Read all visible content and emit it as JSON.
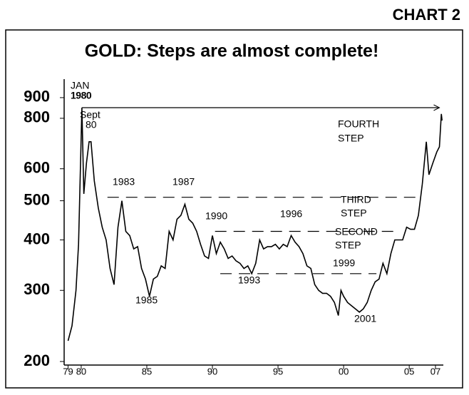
{
  "chart_label": "CHART 2",
  "chart_data": {
    "type": "line",
    "title": "GOLD:  Steps are almost complete!",
    "log_y": true,
    "color": "#000000",
    "xlim": [
      1978.7,
      2007.6
    ],
    "ylim": [
      196,
      1000
    ],
    "xticks": [
      {
        "value": 1979,
        "label": "79"
      },
      {
        "value": 1980,
        "label": "80"
      },
      1985,
      1990,
      1995,
      {
        "value": 2000,
        "label": "00"
      },
      {
        "value": 2005,
        "label": "05"
      },
      {
        "value": 2007,
        "label": "07"
      }
    ],
    "yticks": [
      200,
      300,
      400,
      500,
      600,
      800,
      900
    ],
    "x": [
      1979.0,
      1979.3,
      1979.6,
      1979.8,
      1980.05,
      1980.2,
      1980.4,
      1980.6,
      1980.75,
      1981.0,
      1981.3,
      1981.6,
      1981.9,
      1982.2,
      1982.5,
      1982.8,
      1983.1,
      1983.4,
      1983.7,
      1984.0,
      1984.3,
      1984.6,
      1984.9,
      1985.2,
      1985.5,
      1985.8,
      1986.1,
      1986.4,
      1986.7,
      1987.0,
      1987.3,
      1987.6,
      1987.9,
      1988.2,
      1988.5,
      1988.8,
      1989.1,
      1989.4,
      1989.7,
      1990.0,
      1990.3,
      1990.6,
      1990.9,
      1991.2,
      1991.5,
      1991.8,
      1992.1,
      1992.4,
      1992.7,
      1993.0,
      1993.3,
      1993.6,
      1993.9,
      1994.2,
      1994.5,
      1994.8,
      1995.1,
      1995.4,
      1995.7,
      1996.0,
      1996.3,
      1996.6,
      1996.9,
      1997.2,
      1997.5,
      1997.8,
      1998.1,
      1998.4,
      1998.7,
      1999.0,
      1999.3,
      1999.6,
      1999.8,
      2000.0,
      2000.3,
      2000.6,
      2000.9,
      2001.2,
      2001.5,
      2001.8,
      2002.1,
      2002.4,
      2002.7,
      2003.0,
      2003.3,
      2003.6,
      2003.9,
      2004.2,
      2004.5,
      2004.8,
      2005.1,
      2005.4,
      2005.7,
      2006.0,
      2006.3,
      2006.5,
      2006.8,
      2007.1,
      2007.3,
      2007.45,
      2007.5
    ],
    "values": [
      225,
      245,
      300,
      390,
      850,
      520,
      620,
      700,
      700,
      560,
      480,
      430,
      400,
      340,
      310,
      430,
      500,
      420,
      410,
      380,
      385,
      340,
      320,
      290,
      320,
      325,
      345,
      340,
      420,
      400,
      450,
      460,
      490,
      450,
      440,
      420,
      390,
      365,
      360,
      410,
      370,
      395,
      380,
      360,
      365,
      355,
      350,
      340,
      345,
      330,
      350,
      400,
      380,
      385,
      385,
      390,
      380,
      390,
      385,
      410,
      395,
      385,
      370,
      345,
      340,
      310,
      300,
      295,
      295,
      290,
      280,
      260,
      300,
      290,
      280,
      275,
      270,
      265,
      270,
      280,
      300,
      315,
      320,
      350,
      330,
      370,
      400,
      400,
      400,
      430,
      425,
      425,
      460,
      550,
      700,
      580,
      620,
      660,
      680,
      820,
      790
    ],
    "steps": [
      {
        "y": 850,
        "x": [
          1980.05,
          2007.3
        ],
        "style": "solid"
      },
      {
        "y": 510,
        "x": [
          1982.0,
          2005.6
        ],
        "style": "dashed"
      },
      {
        "y": 420,
        "x": [
          1990.2,
          2004.3
        ],
        "style": "dashed"
      },
      {
        "y": 330,
        "x": [
          1990.6,
          2002.5
        ],
        "style": "dashed"
      }
    ],
    "annotations": [
      [
        "JAN",
        "1980"
      ],
      [
        "Sept",
        "80"
      ],
      [
        "1983"
      ],
      [
        "1987"
      ],
      [
        "1990"
      ],
      [
        "1996"
      ],
      [
        "FOURTH",
        "STEP"
      ],
      [
        "THIRD",
        "STEP"
      ],
      [
        "SECOND",
        "STEP"
      ],
      [
        "1999"
      ],
      [
        "1993"
      ],
      [
        "1985"
      ],
      [
        "2001"
      ]
    ]
  }
}
